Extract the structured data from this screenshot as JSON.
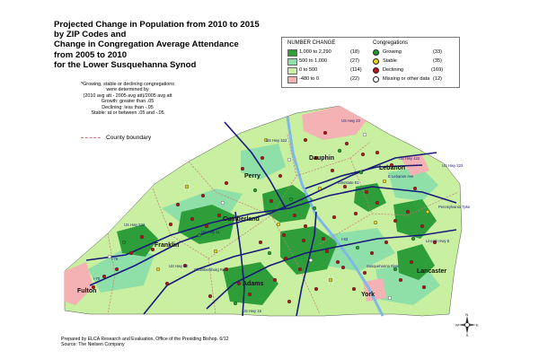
{
  "title_lines": [
    "Projected Change in Population from 2010 to 2015",
    "by ZIP Codes and",
    "Change in Congregation Average Attendance",
    "from 2005 to 2010",
    "for the Lower Susquehanna Synod"
  ],
  "notes": {
    "l1": "*Growing, stable or declining congregations",
    "l2": "were determined by",
    "l3": "(2010 avg att - 2005 avg att)/2005 avg att",
    "l4": "Growth:  greater than .05",
    "l5": "Declining:  less than -.05",
    "l6": "Stable:  at or between .05 and -.05"
  },
  "county_boundary_label": "County boundary",
  "legend": {
    "number_change_title": "NUMBER CHANGE",
    "number_change": [
      {
        "range": "1,000 to 2,290",
        "count": "(18)",
        "color": "#2e9e3a"
      },
      {
        "range": "500 to 1,000",
        "count": "(27)",
        "color": "#8fe0a8"
      },
      {
        "range": "0 to    500",
        "count": "(114)",
        "color": "#c8f0a0"
      },
      {
        "range": "-480 to     0",
        "count": "(22)",
        "color": "#f4b2b4"
      }
    ],
    "congregations_title": "Congregations",
    "congregations": [
      {
        "label": "Growing",
        "count": "(33)",
        "color": "#1e9e2a"
      },
      {
        "label": "Stable",
        "count": "(35)",
        "color": "#e8d020"
      },
      {
        "label": "Declining",
        "count": "(169)",
        "color": "#b01818"
      },
      {
        "label": "Missing or other data",
        "count": "(12)",
        "color": "#ffffff"
      }
    ]
  },
  "counties": [
    "Dauphin",
    "Lebanon",
    "Perry",
    "Cumberland",
    "Franklin",
    "Adams",
    "York",
    "Lancaster",
    "Fulton"
  ],
  "roads": {
    "us22_322": "US Hwy 22",
    "us322": "US Hwy 322",
    "i81": "Interstate 81",
    "us11": "US Hwy 11",
    "penn_turnpike": "Pennsylvania Tpke",
    "lincoln_hwy": "Lincoln Hwy E",
    "us30": "US Hwy 30",
    "chambersburg": "Chambersburg Rd",
    "us15": "US Hwy 15",
    "susquehanna": "Susquehanna River",
    "lebanon_ave": "E Lebanon Ave",
    "us422": "US Hwy 422",
    "i83": "I-83",
    "i76": "I-76",
    "us222": "US Hwy 222",
    "us522": "US Hwy 522",
    "i70": "I-70"
  },
  "compass": {
    "n": "N",
    "s": "S",
    "e": "E",
    "w": "W"
  },
  "footer": {
    "l1": "Prepared by ELCA Research and Evaluation, Office of the Presiding Bishop. 6/12",
    "l2": "Source:  The Nielsen Company"
  },
  "colors": {
    "light_green": "#c8f0a0",
    "mid_green": "#8fe0a8",
    "dark_green": "#2e9e3a",
    "pink": "#f4b2b4",
    "highway": "#1a1a7a",
    "river": "#7fb8e6"
  }
}
